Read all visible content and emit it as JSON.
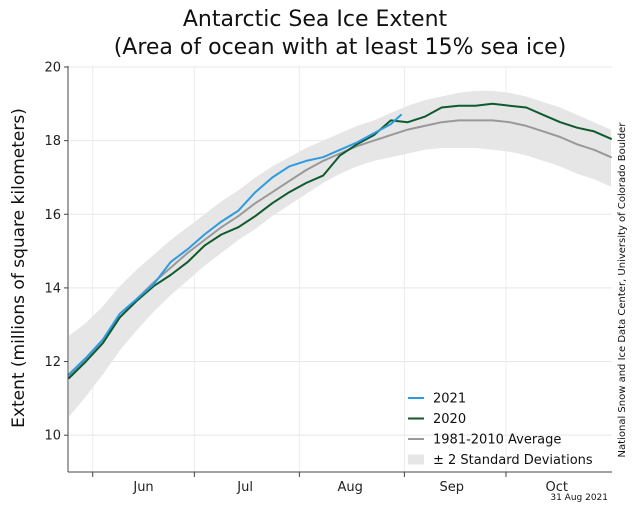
{
  "chart_data": {
    "type": "line",
    "title": "Antarctic Sea Ice Extent",
    "subtitle": "(Area of ocean with at least 15% sea ice)",
    "ylabel": "Extent (millions of square kilometers)",
    "xlabel": "",
    "ylim": [
      9,
      20
    ],
    "yticks": [
      10,
      12,
      14,
      16,
      18,
      20
    ],
    "xlim": [
      145,
      305
    ],
    "month_labels": [
      {
        "label": "Jun",
        "day": 167
      },
      {
        "label": "Jul",
        "day": 197
      },
      {
        "label": "Aug",
        "day": 228
      },
      {
        "label": "Sep",
        "day": 258
      },
      {
        "label": "Oct",
        "day": 289
      }
    ],
    "month_boundaries": [
      152,
      182,
      213,
      244,
      274
    ],
    "grid": true,
    "legend_position": "bottom-right",
    "series": [
      {
        "name": "2021",
        "color": "#2e9be0",
        "x": [
          145,
          150,
          155,
          160,
          165,
          170,
          175,
          180,
          185,
          190,
          195,
          200,
          205,
          210,
          215,
          220,
          225,
          230,
          235,
          240,
          243
        ],
        "y": [
          11.65,
          12.1,
          12.6,
          13.3,
          13.7,
          14.1,
          14.7,
          15.05,
          15.45,
          15.8,
          16.1,
          16.6,
          17.0,
          17.3,
          17.45,
          17.55,
          17.75,
          17.95,
          18.2,
          18.45,
          18.7
        ]
      },
      {
        "name": "2020",
        "color": "#0f5a2e",
        "x": [
          145,
          150,
          155,
          160,
          165,
          170,
          175,
          180,
          185,
          190,
          195,
          200,
          205,
          210,
          215,
          220,
          225,
          230,
          235,
          240,
          245,
          250,
          255,
          260,
          265,
          270,
          275,
          280,
          285,
          290,
          295,
          300,
          305
        ],
        "y": [
          11.55,
          12.0,
          12.5,
          13.2,
          13.65,
          14.05,
          14.35,
          14.7,
          15.15,
          15.45,
          15.65,
          15.95,
          16.3,
          16.6,
          16.85,
          17.05,
          17.6,
          17.9,
          18.15,
          18.55,
          18.5,
          18.65,
          18.9,
          18.95,
          18.95,
          19.0,
          18.95,
          18.9,
          18.7,
          18.5,
          18.35,
          18.25,
          18.05
        ]
      },
      {
        "name": "1981-2010 Average",
        "color": "#999999",
        "x": [
          145,
          150,
          155,
          160,
          165,
          170,
          175,
          180,
          185,
          190,
          195,
          200,
          205,
          210,
          215,
          220,
          225,
          230,
          235,
          240,
          245,
          250,
          255,
          260,
          265,
          270,
          275,
          280,
          285,
          290,
          295,
          300,
          305
        ],
        "y": [
          11.6,
          12.05,
          12.6,
          13.2,
          13.7,
          14.15,
          14.55,
          14.95,
          15.3,
          15.65,
          15.95,
          16.3,
          16.6,
          16.9,
          17.2,
          17.45,
          17.65,
          17.85,
          18.0,
          18.15,
          18.3,
          18.4,
          18.5,
          18.55,
          18.55,
          18.55,
          18.5,
          18.4,
          18.25,
          18.1,
          17.9,
          17.75,
          17.55
        ]
      }
    ],
    "band": {
      "name": "± 2 Standard Deviations",
      "color": "#e6e6e6",
      "x": [
        145,
        150,
        155,
        160,
        165,
        170,
        175,
        180,
        185,
        190,
        195,
        200,
        205,
        210,
        215,
        220,
        225,
        230,
        235,
        240,
        245,
        250,
        255,
        260,
        265,
        270,
        275,
        280,
        285,
        290,
        295,
        300,
        305
      ],
      "upper": [
        12.7,
        13.05,
        13.5,
        14.05,
        14.5,
        14.9,
        15.3,
        15.65,
        16.0,
        16.35,
        16.65,
        17.0,
        17.3,
        17.55,
        17.8,
        18.0,
        18.2,
        18.4,
        18.55,
        18.75,
        18.95,
        19.1,
        19.2,
        19.3,
        19.35,
        19.35,
        19.3,
        19.2,
        19.05,
        18.9,
        18.7,
        18.5,
        18.3
      ],
      "lower": [
        10.5,
        11.05,
        11.65,
        12.3,
        12.85,
        13.35,
        13.8,
        14.2,
        14.6,
        14.95,
        15.3,
        15.6,
        15.95,
        16.25,
        16.55,
        16.85,
        17.1,
        17.3,
        17.45,
        17.55,
        17.65,
        17.75,
        17.8,
        17.8,
        17.8,
        17.75,
        17.7,
        17.6,
        17.45,
        17.3,
        17.1,
        16.95,
        16.75
      ]
    }
  },
  "credit": "National Snow and Ice Data Center, University of Colorado Boulder",
  "date_stamp": "31 Aug 2021"
}
